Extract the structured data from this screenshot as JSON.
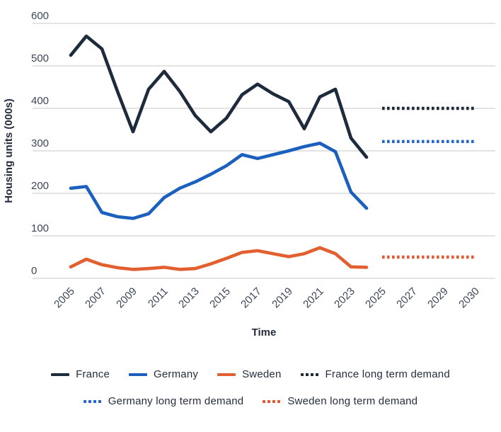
{
  "chart_data": {
    "type": "line",
    "title": "",
    "xlabel": "Time",
    "ylabel": "Housing units (000s)",
    "ylim": [
      0,
      600
    ],
    "ytick_values": [
      0,
      100,
      200,
      300,
      400,
      500,
      600
    ],
    "xtick_labels": [
      "2005",
      "2007",
      "2009",
      "2011",
      "2013",
      "2015",
      "2017",
      "2019",
      "2021",
      "2023",
      "2025",
      "2027",
      "2029",
      "2030"
    ],
    "grid": "horizontal-only",
    "legend_position": "bottom",
    "x_years": [
      2005,
      2006,
      2007,
      2008,
      2009,
      2010,
      2011,
      2012,
      2013,
      2014,
      2015,
      2016,
      2017,
      2018,
      2019,
      2020,
      2021,
      2022,
      2023,
      2024
    ],
    "series": [
      {
        "name": "France",
        "style": "solid",
        "color": "#1d2b3c",
        "values": [
          525,
          570,
          540,
          440,
          345,
          445,
          487,
          440,
          383,
          345,
          377,
          432,
          457,
          434,
          416,
          352,
          427,
          445,
          330,
          285
        ]
      },
      {
        "name": "Germany",
        "style": "solid",
        "color": "#1b60bf",
        "values": [
          212,
          216,
          155,
          145,
          141,
          152,
          190,
          212,
          227,
          245,
          265,
          291,
          282,
          291,
          300,
          310,
          318,
          298,
          203,
          165
        ]
      },
      {
        "name": "Sweden",
        "style": "solid",
        "color": "#e2602f",
        "values": [
          27,
          45,
          32,
          25,
          21,
          23,
          26,
          21,
          23,
          34,
          47,
          61,
          65,
          58,
          51,
          58,
          72,
          58,
          27,
          26
        ]
      },
      {
        "name": "France long term demand",
        "style": "dotted",
        "color": "#1d2b3c",
        "x_range": [
          2025,
          2030
        ],
        "value": 400
      },
      {
        "name": "Germany long term demand",
        "style": "dotted",
        "color": "#2366cc",
        "value": 322,
        "x_range": [
          2025,
          2030
        ]
      },
      {
        "name": "Sweden long term demand",
        "style": "dotted",
        "color": "#e25b36",
        "value": 50,
        "x_range": [
          2025,
          2030
        ]
      }
    ],
    "legend_rows": [
      [
        "France",
        "Germany",
        "Sweden",
        "France long term demand"
      ],
      [
        "Germany long term demand",
        "Sweden long term demand"
      ]
    ]
  },
  "style_colors": {
    "grid": "#d2d2d2",
    "tick_text": "#3c4659",
    "axis_title_text": "#222c3c"
  }
}
